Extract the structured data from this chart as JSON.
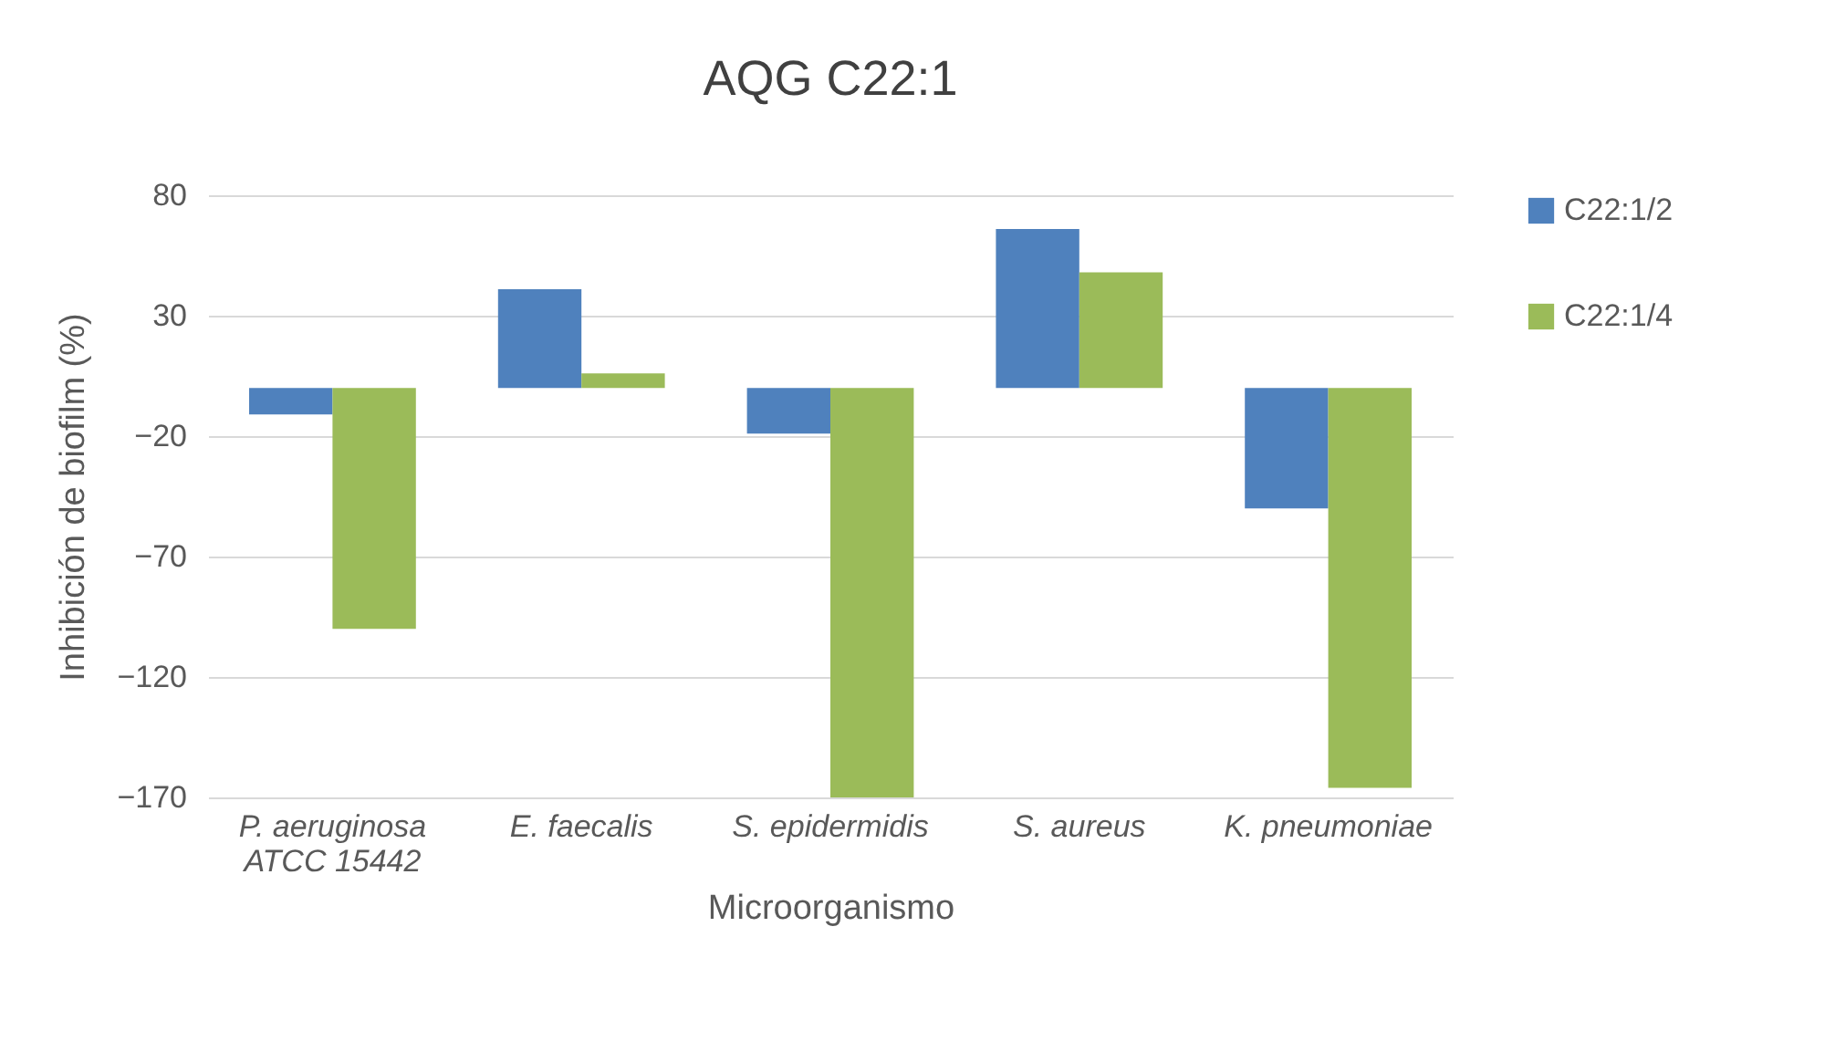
{
  "chart_data": {
    "type": "bar",
    "title": "AQG C22:1",
    "xlabel": "Microorganismo",
    "ylabel": "Inhibición de biofilm (%)",
    "categories": [
      "P. aeruginosa ATCC 15442",
      "E. faecalis",
      "S. epidermidis",
      "S. aureus",
      "K. pneumoniae"
    ],
    "series": [
      {
        "name": "C22:1/2",
        "color": "#4f81bd",
        "values": [
          -11,
          41,
          -19,
          66,
          -50
        ]
      },
      {
        "name": "C22:1/4",
        "color": "#9bbb59",
        "values": [
          -100,
          6,
          -170,
          48,
          -166
        ]
      }
    ],
    "ylim": [
      -170,
      80
    ],
    "yticks": [
      -170,
      -120,
      -70,
      -20,
      30,
      80
    ],
    "grid": "y",
    "legend": "right"
  }
}
